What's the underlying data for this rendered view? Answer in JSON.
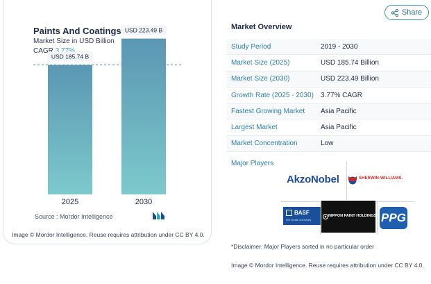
{
  "chart": {
    "title": "Paints And Coatings Market",
    "subtitle": "Market Size in USD Billion",
    "cagr_label": "CAGR",
    "cagr_value": "3.77%",
    "source": "Source :  Mordor Intelligence",
    "credit": "Image © Mordor Intelligence. Reuse requires attribution under CC BY 4.0."
  },
  "chart_data": {
    "type": "bar",
    "title": "Paints And Coatings Market",
    "ylabel": "Market Size in USD Billion",
    "categories": [
      "2025",
      "2030"
    ],
    "values": [
      185.74,
      223.49
    ],
    "data_labels": [
      "USD 185.74 B",
      "USD 223.49 B"
    ],
    "ylim": [
      0,
      240
    ],
    "reference_line": 185.74
  },
  "share": {
    "label": "Share"
  },
  "overview": {
    "title": "Market Overview",
    "rows": [
      {
        "key": "Study Period",
        "value": "2019 - 2030"
      },
      {
        "key": "Market Size (2025)",
        "value": "USD 185.74 Billion"
      },
      {
        "key": "Market Size (2030)",
        "value": "USD 223.49 Billion"
      },
      {
        "key": "Growth Rate (2025 - 2030)",
        "value": "3.77% CAGR"
      },
      {
        "key": "Fastest Growing Market",
        "value": "Asia Pacific"
      },
      {
        "key": "Largest Market",
        "value": "Asia Pacific"
      },
      {
        "key": "Market Concentration",
        "value": "Low"
      }
    ]
  },
  "players": {
    "label": "Major Players",
    "akzonobel": "AkzoNobel",
    "sherwin": "SHERWIN-WILLIAMS.",
    "basf": "BASF",
    "basf_tagline": "We create chemistry",
    "nippon": "NIPPON PAINT HOLDINGS",
    "ppg": "PPG"
  },
  "disclaimer": "*Disclaimer: Major Players sorted in no particular order",
  "credit_right": "Image © Mordor Intelligence. Reuse requires attribution under CC BY 4.0.",
  "colors": {
    "bar_top": "#5b97b3",
    "bar_bottom": "#7dc9cc",
    "accent": "#2f7fa6"
  }
}
